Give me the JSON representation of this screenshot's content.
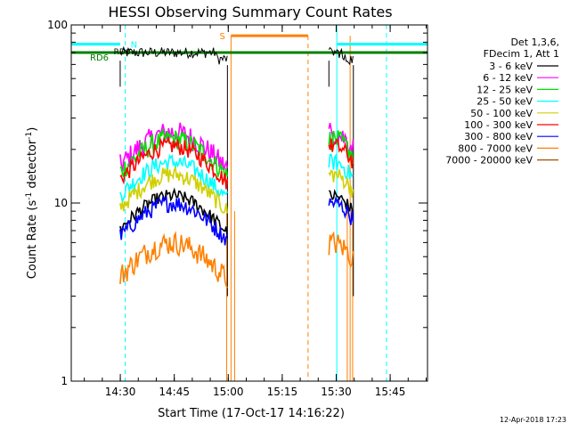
{
  "chart_data": {
    "type": "line",
    "title": "HESSI Observing Summary Count Rates",
    "xlabel": "Start Time (17-Oct-17 14:16:22)",
    "ylabel_main": "Count Rate (s",
    "ylabel_sup1": "-1",
    "ylabel_mid": " detector",
    "ylabel_sup2": "-1",
    "ylabel_end": ")",
    "yscale": "log",
    "xlim_minutes": [
      0,
      99
    ],
    "ylim": [
      1,
      100
    ],
    "x_ticks": [
      {
        "label": "14:30",
        "t": 13.63
      },
      {
        "label": "14:45",
        "t": 28.63
      },
      {
        "label": "15:00",
        "t": 43.63
      },
      {
        "label": "15:15",
        "t": 58.63
      },
      {
        "label": "15:30",
        "t": 73.63
      },
      {
        "label": "15:45",
        "t": 88.63
      }
    ],
    "y_ticks": [
      {
        "label": "1",
        "v": 1
      },
      {
        "label": "10",
        "v": 10
      },
      {
        "label": "100",
        "v": 100
      }
    ],
    "legend": {
      "header": [
        "Det 1,3,6,",
        "FDecim 1, Att 1"
      ],
      "placement": "right"
    },
    "series": [
      {
        "name": "3 - 6 keV",
        "color": "#000000"
      },
      {
        "name": "6 - 12 keV",
        "color": "#ff00ff"
      },
      {
        "name": "12 - 25 keV",
        "color": "#00e000"
      },
      {
        "name": "25 - 50 keV",
        "color": "#00ffff"
      },
      {
        "name": "50 - 100 keV",
        "color": "#d0d000"
      },
      {
        "name": "100 - 300 keV",
        "color": "#ff0000"
      },
      {
        "name": "300 - 800 keV",
        "color": "#0000ff"
      },
      {
        "name": "800 - 7000 keV",
        "color": "#ff8000"
      },
      {
        "name": "7000 - 20000 keV",
        "color": "#a05000"
      }
    ],
    "segments": [
      {
        "start": 13.6,
        "end": 43.4,
        "peak_min": 28.0
      },
      {
        "start": 71.6,
        "end": 78.4,
        "peak_min": 72.5
      }
    ],
    "band_levels": [
      {
        "color": "#ff00ff",
        "peak": 25,
        "noise": 0.07
      },
      {
        "color": "#00e000",
        "peak": 23,
        "noise": 0.06
      },
      {
        "color": "#ff0000",
        "peak": 21,
        "noise": 0.05
      },
      {
        "color": "#00ffff",
        "peak": 17,
        "noise": 0.05
      },
      {
        "color": "#d0d000",
        "peak": 14.5,
        "noise": 0.05
      },
      {
        "color": "#000000",
        "peak": 11,
        "noise": 0.04
      },
      {
        "color": "#0000ff",
        "peak": 10,
        "noise": 0.05
      },
      {
        "color": "#ff8000",
        "peak": 6,
        "noise": 0.07
      }
    ],
    "thermal_level": 70,
    "annotations": {
      "night_label": "N",
      "saa_label": "S",
      "rd6_label": "RD6",
      "rd6_label2": "RD6"
    },
    "bars": {
      "night_color": "#00ffff",
      "saa_color": "#ff8000",
      "rd6_color": "#008000",
      "night_level": 78,
      "saa_level": 87,
      "rd6_level": 70,
      "night_spans": [
        [
          0,
          13.6
        ],
        [
          73.8,
          99
        ]
      ],
      "saa_spans": [
        [
          44.4,
          65.8
        ]
      ],
      "rd6_spans": [
        [
          0,
          99
        ]
      ],
      "vlines_night_solid": [
        0.0,
        73.8
      ],
      "vlines_night_dashed": [
        15.0,
        87.6
      ],
      "vlines_saa_solid": [
        44.4,
        77.5
      ],
      "vlines_saa_dashed": [
        65.8
      ],
      "saa_drop_lines": [
        43.2,
        45.4,
        76.7,
        78.2
      ]
    }
  },
  "footer": {
    "date_stamp": "12-Apr-2018 17:23"
  }
}
